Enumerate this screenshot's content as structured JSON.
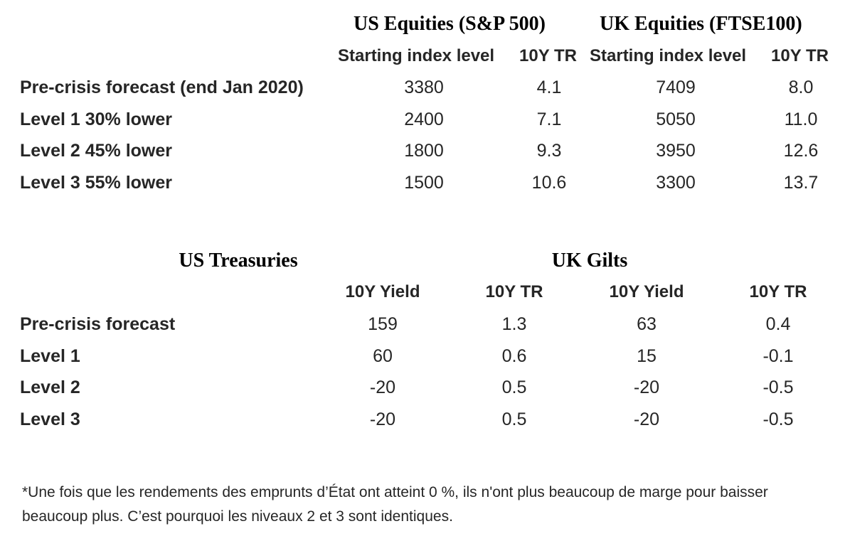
{
  "equities": {
    "group_headers": [
      "US Equities (S&P 500)",
      "UK Equities (FTSE100)"
    ],
    "col_headers": [
      "Starting index level",
      "10Y TR",
      "Starting index level",
      "10Y TR"
    ],
    "rows": [
      {
        "label": "Pre-crisis forecast (end Jan 2020)",
        "values": [
          "3380",
          "4.1",
          "7409",
          "8.0"
        ]
      },
      {
        "label": "Level 1 30% lower",
        "values": [
          "2400",
          "7.1",
          "5050",
          "11.0"
        ]
      },
      {
        "label": "Level 2 45% lower",
        "values": [
          "1800",
          "9.3",
          "3950",
          "12.6"
        ]
      },
      {
        "label": "Level 3 55% lower",
        "values": [
          "1500",
          "10.6",
          "3300",
          "13.7"
        ]
      }
    ]
  },
  "bonds": {
    "group_headers": [
      "US Treasuries",
      "UK Gilts"
    ],
    "col_headers": [
      "10Y Yield",
      "10Y TR",
      "10Y Yield",
      "10Y TR"
    ],
    "rows": [
      {
        "label": "Pre-crisis forecast",
        "values": [
          "159",
          "1.3",
          "63",
          "0.4"
        ]
      },
      {
        "label": "Level 1",
        "values": [
          "60",
          "0.6",
          "15",
          "-0.1"
        ]
      },
      {
        "label": "Level 2",
        "values": [
          "-20",
          "0.5",
          "-20",
          "-0.5"
        ]
      },
      {
        "label": "Level 3",
        "values": [
          "-20",
          "0.5",
          "-20",
          "-0.5"
        ]
      }
    ]
  },
  "footnote": "*Une fois que les rendements des emprunts d’État ont atteint 0 %, ils n'ont plus beaucoup de marge pour baisser beaucoup plus. C’est pourquoi les niveaux 2 et 3 sont identiques."
}
